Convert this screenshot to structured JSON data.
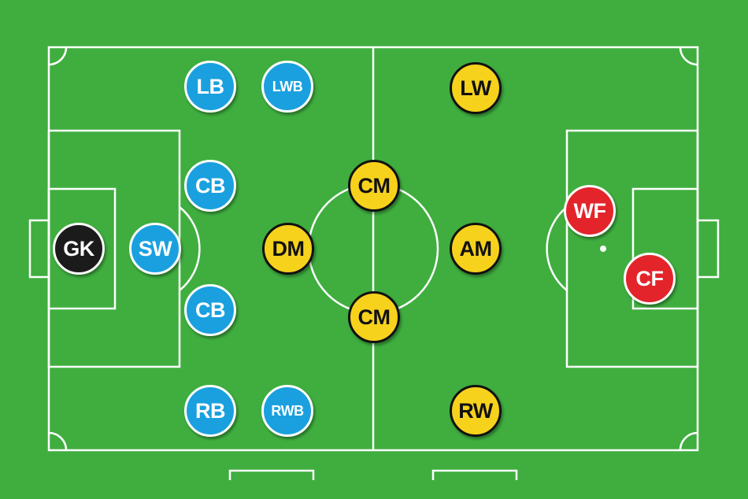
{
  "colors": {
    "pitch": "#3fae3f",
    "lines": "#ffffff",
    "defender": "#1aa0df",
    "midfielder": "#f7d21c",
    "forward": "#e3242b",
    "goalkeeper": "#1b1b1b"
  },
  "positions": {
    "gk": "GK",
    "sw": "SW",
    "cb_top": "CB",
    "cb_bottom": "CB",
    "lb": "LB",
    "rb": "RB",
    "lwb": "LWB",
    "rwb": "RWB",
    "dm": "DM",
    "cm_top": "CM",
    "cm_bottom": "CM",
    "am": "AM",
    "lw": "LW",
    "rw": "RW",
    "wf": "WF",
    "cf": "CF"
  }
}
